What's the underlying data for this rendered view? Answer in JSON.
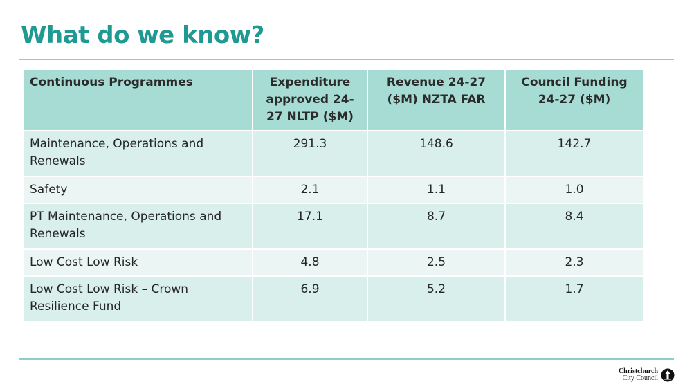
{
  "slide": {
    "title": "What do we know?"
  },
  "table": {
    "headers": [
      "Continuous Programmes",
      "Expenditure approved 24-27 NLTP ($M)",
      "Revenue 24-27  ($M) NZTA FAR",
      "Council Funding 24-27 ($M)"
    ],
    "rows": [
      [
        "Maintenance, Operations and Renewals",
        "291.3",
        "148.6",
        "142.7"
      ],
      [
        "Safety",
        "2.1",
        "1.1",
        "1.0"
      ],
      [
        "PT Maintenance, Operations and Renewals",
        "17.1",
        "8.7",
        "8.4"
      ],
      [
        "Low Cost Low Risk",
        "4.8",
        "2.5",
        "2.3"
      ],
      [
        "Low Cost Low Risk – Crown Resilience Fund",
        "6.9",
        "5.2",
        "1.7"
      ]
    ]
  },
  "logo": {
    "line1": "Christchurch",
    "line2": "City Council"
  },
  "colors": {
    "accent": "#1e9a93",
    "header_fill": "#a6dcd4",
    "row_dark": "#d8efec",
    "row_light": "#ebf6f4",
    "rule": "#8ccfc9"
  }
}
